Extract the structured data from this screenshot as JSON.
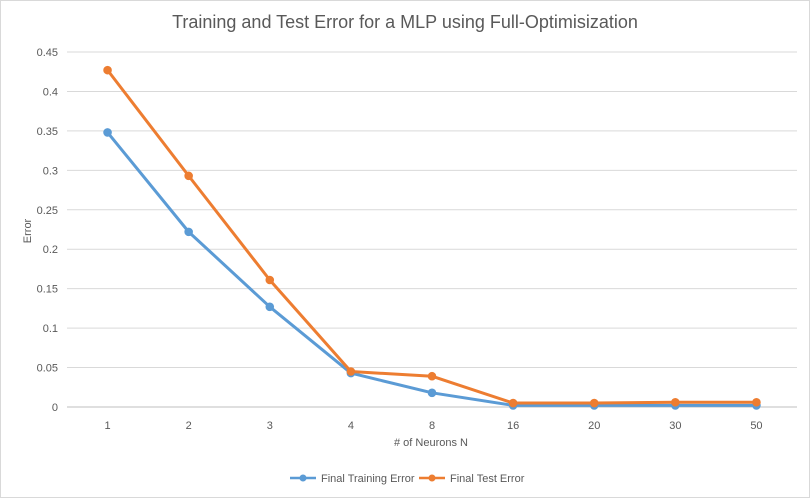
{
  "chart_data": {
    "type": "line",
    "title": "Training and Test Error for a MLP using Full-Optimisization",
    "xlabel": "# of Neurons N",
    "ylabel": "Error",
    "categories": [
      "1",
      "2",
      "3",
      "4",
      "8",
      "16",
      "20",
      "30",
      "50"
    ],
    "ylim": [
      0,
      0.45
    ],
    "yticks": [
      "0",
      "0.05",
      "0.1",
      "0.15",
      "0.2",
      "0.25",
      "0.3",
      "0.35",
      "0.4",
      "0.45"
    ],
    "grid": true,
    "legend_position": "bottom",
    "series": [
      {
        "name": "Final Training Error",
        "color": "#5b9bd5",
        "values": [
          0.348,
          0.222,
          0.127,
          0.043,
          0.018,
          0.002,
          0.002,
          0.002,
          0.002
        ]
      },
      {
        "name": "Final Test Error",
        "color": "#ed7d31",
        "values": [
          0.427,
          0.293,
          0.161,
          0.045,
          0.039,
          0.005,
          0.005,
          0.006,
          0.006
        ]
      }
    ]
  }
}
